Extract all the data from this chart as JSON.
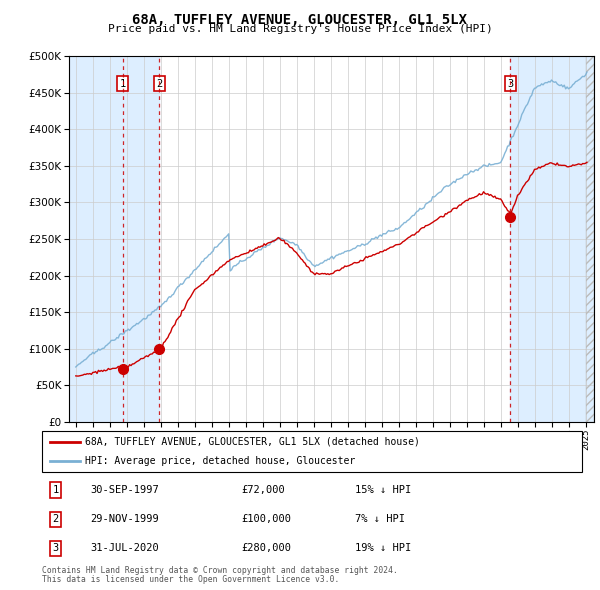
{
  "title": "68A, TUFFLEY AVENUE, GLOUCESTER, GL1 5LX",
  "subtitle": "Price paid vs. HM Land Registry's House Price Index (HPI)",
  "legend_line1": "68A, TUFFLEY AVENUE, GLOUCESTER, GL1 5LX (detached house)",
  "legend_line2": "HPI: Average price, detached house, Gloucester",
  "footnote1": "Contains HM Land Registry data © Crown copyright and database right 2024.",
  "footnote2": "This data is licensed under the Open Government Licence v3.0.",
  "sales": [
    {
      "num": 1,
      "date": "30-SEP-1997",
      "price": 72000,
      "pct": "15%",
      "direction": "↓",
      "year": 1997.75
    },
    {
      "num": 2,
      "date": "29-NOV-1999",
      "price": 100000,
      "pct": "7%",
      "direction": "↓",
      "year": 1999.92
    },
    {
      "num": 3,
      "date": "31-JUL-2020",
      "price": 280000,
      "pct": "19%",
      "direction": "↓",
      "year": 2020.58
    }
  ],
  "sale_prices": [
    72000,
    100000,
    280000
  ],
  "property_color": "#cc0000",
  "hpi_color": "#7ab0d4",
  "vline_color": "#cc0000",
  "shade_color": "#ddeeff",
  "hatch_color": "#cccccc",
  "ylim": [
    0,
    500000
  ],
  "yticks": [
    0,
    50000,
    100000,
    150000,
    200000,
    250000,
    300000,
    350000,
    400000,
    450000,
    500000
  ],
  "xlim_start": 1994.6,
  "xlim_end": 2025.5,
  "data_end": 2025.0
}
